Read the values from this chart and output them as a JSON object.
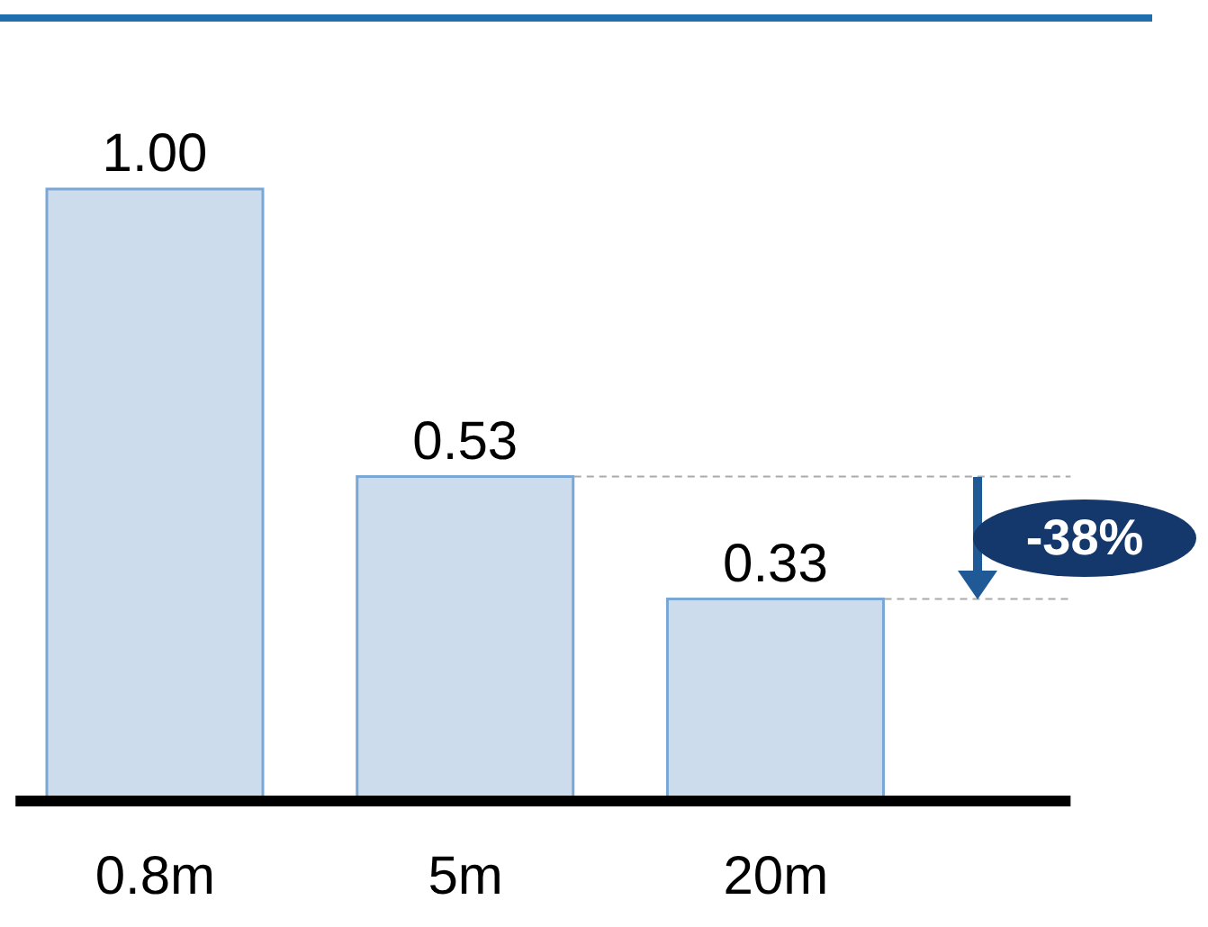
{
  "chart_data": {
    "type": "bar",
    "categories": [
      "0.8m",
      "5m",
      "20m"
    ],
    "values": [
      1.0,
      0.53,
      0.33
    ],
    "value_labels": [
      "1.00",
      "0.53",
      "0.33"
    ],
    "color": "#ccdcec",
    "ref_lines": [
      {
        "axis": "y",
        "value": 0.53,
        "color": "#aaaaaa",
        "line_style": "dashed"
      },
      {
        "axis": "y",
        "value": 0.33,
        "color": "#aaaaaa",
        "line_style": "dashed"
      }
    ],
    "annotations": [
      "-38%"
    ]
  }
}
